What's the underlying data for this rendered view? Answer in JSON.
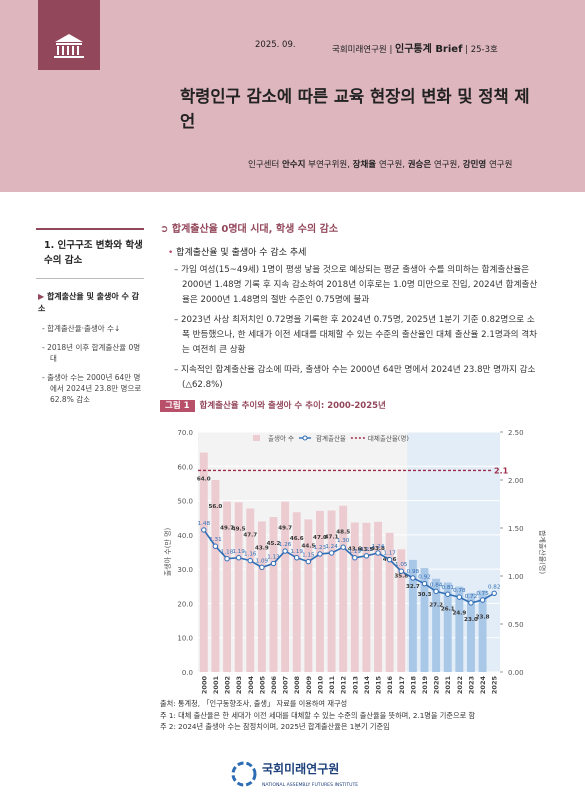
{
  "header": {
    "date": "2025. 09.",
    "publisher": "국회미래연구원",
    "series": "인구통계 Brief",
    "issue": "25-3호",
    "title": "학령인구 감소에 따른 교육 현장의 변화 및 정책 제언",
    "author_org": "인구센터",
    "authors": [
      {
        "name": "안수지",
        "role": "부연구위원,"
      },
      {
        "name": "장채율",
        "role": "연구원,"
      },
      {
        "name": "권승은",
        "role": "연구원,"
      },
      {
        "name": "강민영",
        "role": "연구원"
      }
    ]
  },
  "sidebar": {
    "heading": "1. 인구구조 변화와 학생 수의 감소",
    "subheading": "합계출산율 및 출생아 수 감소",
    "items": [
      "합계출산율·출생아 수↓",
      "2018년 이후 합계출산율 0명대",
      "출생아 수는 2000년 64만 명에서 2024년 23.8만 명으로 62.8% 감소"
    ]
  },
  "body": {
    "section_heading": "합계출산율 0명대 시대, 학생 수의 감소",
    "bullet": "합계출산율 및 출생아 수 감소 추세",
    "paragraphs": [
      "가임 여성(15~49세) 1명이 평생 낳을 것으로 예상되는 평균 출생아 수를 의미하는 합계출산율은 2000년 1.48명 기록 후 지속 감소하여 2018년 이후로는 1.0명 미만으로 진입, 2024년 합계출산율은 2000년 1.48명의 절반 수준인 0.75명에 불과",
      "2023년 사상 최저치인 0.72명을 기록한 후 2024년 0.75명, 2025년 1분기 기준 0.82명으로 소폭 반등했으나, 한 세대가 이전 세대를 대체할 수 있는 수준의 출산율인 대체 출산율 2.1명과의 격차는 여전히 큰 상황",
      "지속적인 합계출산율 감소에 따라, 출생아 수는 2000년 64만 명에서 2024년 23.8만 명까지 감소(△62.8%)"
    ]
  },
  "figure": {
    "label": "그림 1",
    "title": "합계출산율 추이와 출생아 수 추이: 2000-2025년",
    "chart": {
      "type": "bar-line",
      "categories": [
        "2000",
        "2001",
        "2002",
        "2003",
        "2004",
        "2005",
        "2006",
        "2007",
        "2008",
        "2009",
        "2010",
        "2011",
        "2012",
        "2013",
        "2014",
        "2015",
        "2016",
        "2017",
        "2018",
        "2019",
        "2020",
        "2021",
        "2022",
        "2023",
        "2024",
        "2025"
      ],
      "highlight_from": "2018",
      "ylabel": "출생아 수(만 명)",
      "y2label": "합계출산율(명)",
      "ylim": [
        0,
        70
      ],
      "yticks": [
        {
          "value": 0,
          "label": "0.0"
        },
        {
          "value": 10,
          "label": "10.0"
        },
        {
          "value": 20,
          "label": "20.0"
        },
        {
          "value": 30,
          "label": "30.0"
        },
        {
          "value": 40,
          "label": "40.0"
        },
        {
          "value": 50,
          "label": "50.0"
        },
        {
          "value": 60,
          "label": "60.0"
        },
        {
          "value": 70,
          "label": "70.0"
        }
      ],
      "y2lim": [
        0,
        2.5
      ],
      "y2ticks": [
        {
          "value": 0,
          "label": "0.00"
        },
        {
          "value": 0.5,
          "label": "0.50"
        },
        {
          "value": 1,
          "label": "1.00"
        },
        {
          "value": 1.5,
          "label": "1.50"
        },
        {
          "value": 2,
          "label": "2.00"
        },
        {
          "value": 2.5,
          "label": "2.50"
        }
      ],
      "grid": true,
      "series": [
        {
          "name": "출생아 수",
          "type": "bar",
          "color": "#ecccd1",
          "colors": [
            "#ecccd1",
            "#ecccd1",
            "#ecccd1",
            "#ecccd1",
            "#ecccd1",
            "#ecccd1",
            "#ecccd1",
            "#ecccd1",
            "#ecccd1",
            "#ecccd1",
            "#ecccd1",
            "#ecccd1",
            "#ecccd1",
            "#ecccd1",
            "#ecccd1",
            "#ecccd1",
            "#ecccd1",
            "#ecccd1",
            "#a9c7e6",
            "#a9c7e6",
            "#a9c7e6",
            "#a9c7e6",
            "#a9c7e6",
            "#a9c7e6",
            "#a9c7e6",
            "#a9c7e6"
          ],
          "values": [
            64.0,
            56.0,
            49.7,
            49.5,
            47.7,
            43.9,
            45.2,
            49.7,
            46.6,
            44.5,
            47.0,
            47.1,
            48.5,
            43.6,
            43.5,
            43.8,
            40.6,
            35.8,
            32.7,
            30.3,
            27.2,
            26.1,
            24.9,
            23.0,
            23.8,
            null
          ],
          "value_labels": [
            "64.0",
            "56.0",
            "49.7",
            "49.5",
            "47.7",
            "43.9",
            "45.2",
            "49.7",
            "46.6",
            "44.5",
            "47.0",
            "47.1",
            "48.5",
            "43.6",
            "43.5",
            "43.8",
            "40.6",
            "35.8",
            "32.7",
            "30.3",
            "27.2",
            "26.1",
            "24.9",
            "23.0",
            "23.8",
            null
          ]
        },
        {
          "name": "합계출산율",
          "type": "line",
          "axis": "y2",
          "color": "#2f6db5",
          "values": [
            1.48,
            1.31,
            1.18,
            1.19,
            1.16,
            1.09,
            1.13,
            1.26,
            1.19,
            1.15,
            1.23,
            1.24,
            1.3,
            1.19,
            1.21,
            1.24,
            1.17,
            1.05,
            0.98,
            0.92,
            0.84,
            0.81,
            0.78,
            0.72,
            0.75,
            0.82
          ],
          "value_labels": [
            "1.48",
            "1.31",
            "1.18",
            "1.19",
            "1.16",
            "1.09",
            "1.13",
            "1.26",
            "1.19",
            "1.15",
            "1.23",
            "1.24",
            "1.30",
            "1.19",
            "1.21",
            "1.24",
            "1.17",
            "1.05",
            "0.98",
            "0.92",
            "0.84",
            "0.81",
            "0.78",
            "0.72",
            "0.75",
            "0.82"
          ]
        },
        {
          "name": "대체출산율(명)",
          "type": "reference",
          "axis": "y2",
          "color": "#9b2d4a",
          "value": 2.1,
          "value_label": "2.1"
        }
      ]
    }
  },
  "notes": [
    "출처: 통계청, 「인구동향조사, 출생」 자료를 이용하여 재구성",
    "주 1: 대체 출산율은 한 세대가 이전 세대를 대체할 수 있는 수준의 출산율을 뜻하며, 2.1명을 기준으로 함",
    "주 2: 2024년 출생아 수는 잠정치이며, 2025년 합계출산율은 1분기 기준임"
  ],
  "footer": {
    "logo_name": "국회미래연구원",
    "logo_english": "NATIONAL ASSEMBLY FUTURES INSTITUTE"
  }
}
